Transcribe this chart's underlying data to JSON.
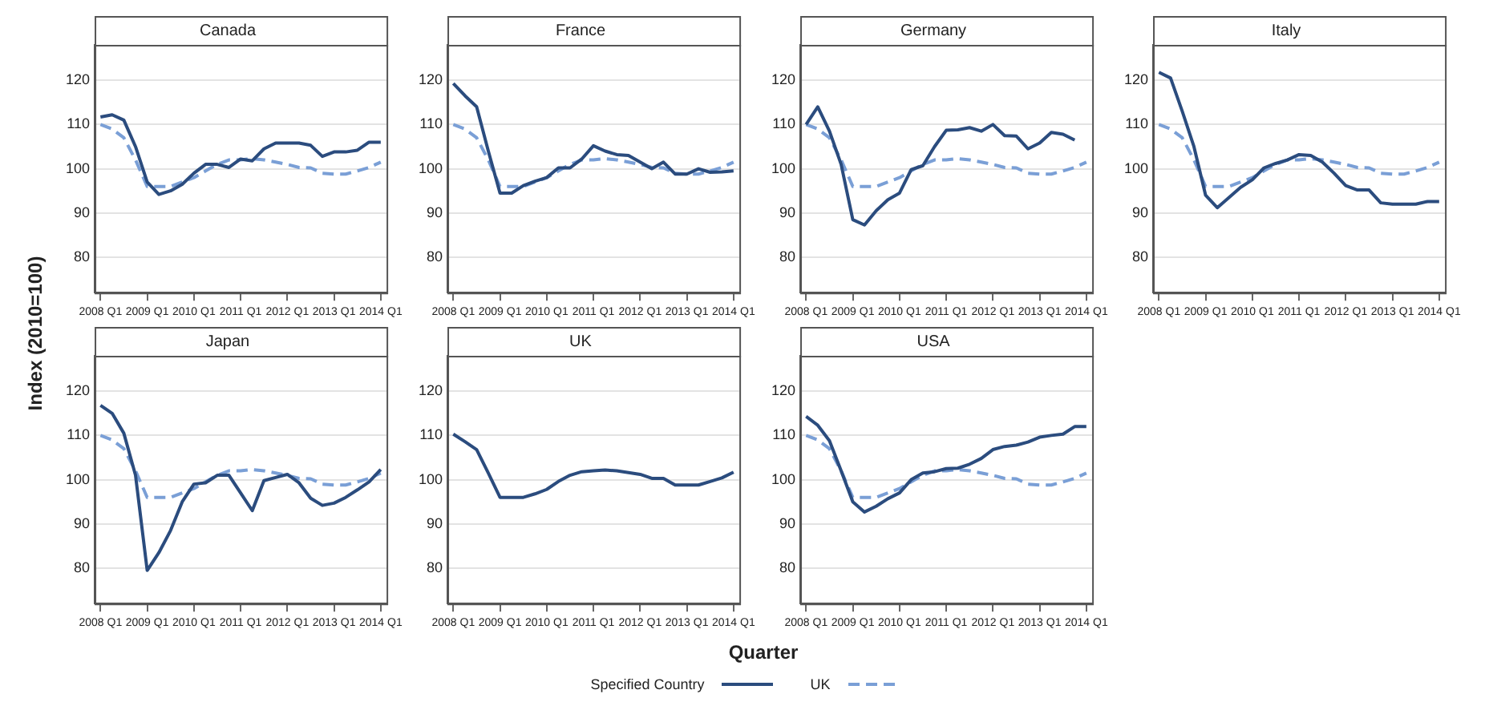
{
  "chart_data": [
    {
      "type": "line",
      "title": "Canada",
      "ylabel": "Index (2010=100)",
      "categories": [
        "2008 Q1",
        null,
        null,
        null,
        "2009 Q1",
        null,
        null,
        null,
        "2010 Q1",
        null,
        null,
        null,
        "2011 Q1",
        null,
        null,
        null,
        "2012 Q1",
        null,
        null,
        null,
        "2013 Q1",
        null,
        null,
        null,
        "2014 Q1"
      ],
      "ylim": [
        72,
        128
      ],
      "yticks": [
        80,
        90,
        100,
        110,
        120
      ],
      "grid": "y",
      "series": [
        {
          "color": "#2b4c7e",
          "line_style": "solid",
          "values": [
            111.7,
            112.2,
            111,
            105,
            97,
            94.2,
            95,
            96.5,
            99,
            101,
            101,
            100.3,
            102.2,
            101.8,
            104.5,
            105.8,
            105.8,
            105.8,
            105.3,
            102.8,
            103.8,
            103.8,
            104.2,
            106,
            106
          ]
        },
        {
          "color": "#7a9fd6",
          "line_style": "dashed",
          "values": [
            110,
            109,
            107,
            102,
            96,
            96,
            96,
            97,
            98,
            99.5,
            101,
            102,
            102,
            102.3,
            102,
            101.5,
            101,
            100.3,
            100.2,
            99,
            98.8,
            98.8,
            99.5,
            100.3,
            101.5
          ]
        }
      ]
    },
    {
      "type": "line",
      "title": "France",
      "categories": [
        "2008 Q1",
        null,
        null,
        null,
        "2009 Q1",
        null,
        null,
        null,
        "2010 Q1",
        null,
        null,
        null,
        "2011 Q1",
        null,
        null,
        null,
        "2012 Q1",
        null,
        null,
        null,
        "2013 Q1",
        null,
        null,
        null,
        "2014 Q1"
      ],
      "ylim": [
        72,
        128
      ],
      "yticks": [
        80,
        90,
        100,
        110,
        120
      ],
      "grid": "y",
      "series": [
        {
          "color": "#2b4c7e",
          "line_style": "solid",
          "values": [
            119.3,
            116.5,
            114,
            104,
            94.5,
            94.5,
            96.2,
            97.2,
            98,
            100.2,
            100.2,
            102.2,
            105.2,
            104,
            103.2,
            103,
            101.5,
            100,
            101.5,
            98.8,
            98.8,
            100,
            99.2,
            99.3,
            99.5
          ]
        },
        {
          "color": "#7a9fd6",
          "line_style": "dashed",
          "values": [
            110,
            109,
            107,
            102,
            96,
            96,
            96,
            97,
            98,
            99.5,
            101,
            102,
            102,
            102.3,
            102,
            101.5,
            101,
            100.3,
            100.2,
            99,
            98.8,
            98.8,
            99.5,
            100.3,
            101.5
          ]
        }
      ]
    },
    {
      "type": "line",
      "title": "Germany",
      "categories": [
        "2008 Q1",
        null,
        null,
        null,
        "2009 Q1",
        null,
        null,
        null,
        "2010 Q1",
        null,
        null,
        null,
        "2011 Q1",
        null,
        null,
        null,
        "2012 Q1",
        null,
        null,
        null,
        "2013 Q1",
        null,
        null,
        null,
        "2014 Q1"
      ],
      "ylim": [
        72,
        128
      ],
      "yticks": [
        80,
        90,
        100,
        110,
        120
      ],
      "grid": "y",
      "series": [
        {
          "color": "#2b4c7e",
          "line_style": "solid",
          "values": [
            110,
            114,
            108.5,
            101,
            88.5,
            87.3,
            90.5,
            93,
            94.5,
            99.8,
            100.7,
            105,
            108.7,
            108.8,
            109.3,
            108.5,
            110,
            107.5,
            107.4,
            104.5,
            105.8,
            108.2,
            107.8,
            106.5,
            null
          ]
        },
        {
          "color": "#7a9fd6",
          "line_style": "dashed",
          "values": [
            110,
            109,
            107,
            102,
            96,
            96,
            96,
            97,
            98,
            99.5,
            101,
            102,
            102,
            102.3,
            102,
            101.5,
            101,
            100.3,
            100.2,
            99,
            98.8,
            98.8,
            99.5,
            100.3,
            101.5
          ]
        }
      ]
    },
    {
      "type": "line",
      "title": "Italy",
      "categories": [
        "2008 Q1",
        null,
        null,
        null,
        "2009 Q1",
        null,
        null,
        null,
        "2010 Q1",
        null,
        null,
        null,
        "2011 Q1",
        null,
        null,
        null,
        "2012 Q1",
        null,
        null,
        null,
        "2013 Q1",
        null,
        null,
        null,
        "2014 Q1"
      ],
      "ylim": [
        72,
        128
      ],
      "yticks": [
        80,
        90,
        100,
        110,
        120
      ],
      "grid": "y",
      "series": [
        {
          "color": "#2b4c7e",
          "line_style": "solid",
          "values": [
            121.8,
            120.5,
            113,
            105,
            94,
            91.2,
            93.5,
            95.8,
            97.5,
            100.2,
            101.2,
            102,
            103.2,
            103,
            101.5,
            99,
            96.2,
            95.2,
            95.2,
            92.3,
            92,
            92,
            92,
            92.6,
            92.6
          ]
        },
        {
          "color": "#7a9fd6",
          "line_style": "dashed",
          "values": [
            110,
            109,
            107,
            102,
            96,
            96,
            96,
            97,
            98,
            99.5,
            101,
            102,
            102,
            102.3,
            102,
            101.5,
            101,
            100.3,
            100.2,
            99,
            98.8,
            98.8,
            99.5,
            100.3,
            101.5
          ]
        }
      ]
    },
    {
      "type": "line",
      "title": "Japan",
      "categories": [
        "2008 Q1",
        null,
        null,
        null,
        "2009 Q1",
        null,
        null,
        null,
        "2010 Q1",
        null,
        null,
        null,
        "2011 Q1",
        null,
        null,
        null,
        "2012 Q1",
        null,
        null,
        null,
        "2013 Q1",
        null,
        null,
        null,
        "2014 Q1"
      ],
      "ylim": [
        72,
        128
      ],
      "yticks": [
        80,
        90,
        100,
        110,
        120
      ],
      "grid": "y",
      "series": [
        {
          "color": "#2b4c7e",
          "line_style": "solid",
          "values": [
            116.8,
            115,
            110.5,
            101,
            79.5,
            83.5,
            88.5,
            95,
            99,
            99.3,
            101,
            101,
            97,
            93,
            99.8,
            100.5,
            101.2,
            99.3,
            95.8,
            94.2,
            94.7,
            96,
            97.7,
            99.5,
            102.3
          ]
        },
        {
          "color": "#7a9fd6",
          "line_style": "dashed",
          "values": [
            110,
            109,
            107,
            102,
            96,
            96,
            96,
            97,
            98,
            99.5,
            101,
            102,
            102,
            102.3,
            102,
            101.5,
            101,
            100.3,
            100.2,
            99,
            98.8,
            98.8,
            99.5,
            100.3,
            101.5
          ]
        }
      ]
    },
    {
      "type": "line",
      "title": "UK",
      "xlabel": "Quarter",
      "legend": "bottom",
      "categories": [
        "2008 Q1",
        null,
        null,
        null,
        "2009 Q1",
        null,
        null,
        null,
        "2010 Q1",
        null,
        null,
        null,
        "2011 Q1",
        null,
        null,
        null,
        "2012 Q1",
        null,
        null,
        null,
        "2013 Q1",
        null,
        null,
        null,
        "2014 Q1"
      ],
      "ylim": [
        72,
        128
      ],
      "yticks": [
        80,
        90,
        100,
        110,
        120
      ],
      "grid": "y",
      "series": [
        {
          "name": "Specified Country",
          "color": "#2b4c7e",
          "line_style": "solid",
          "values": [
            110.3,
            108.6,
            106.8,
            101.5,
            96,
            96,
            96,
            96.8,
            97.8,
            99.6,
            101,
            101.8,
            102,
            102.2,
            102,
            101.6,
            101.2,
            100.3,
            100.3,
            98.8,
            98.8,
            98.8,
            99.6,
            100.4,
            101.7
          ]
        },
        {
          "name": "UK",
          "color": "#7a9fd6",
          "line_style": "dashed",
          "values": [
            null,
            null,
            null,
            null,
            null,
            null,
            null,
            null,
            null,
            null,
            null,
            null,
            null,
            null,
            null,
            null,
            null,
            null,
            null,
            null,
            null,
            null,
            null,
            null,
            null
          ]
        }
      ]
    },
    {
      "type": "line",
      "title": "USA",
      "categories": [
        "2008 Q1",
        null,
        null,
        null,
        "2009 Q1",
        null,
        null,
        null,
        "2010 Q1",
        null,
        null,
        null,
        "2011 Q1",
        null,
        null,
        null,
        "2012 Q1",
        null,
        null,
        null,
        "2013 Q1",
        null,
        null,
        null,
        "2014 Q1"
      ],
      "ylim": [
        72,
        128
      ],
      "yticks": [
        80,
        90,
        100,
        110,
        120
      ],
      "grid": "y",
      "series": [
        {
          "color": "#2b4c7e",
          "line_style": "solid",
          "values": [
            114.3,
            112.3,
            108.8,
            102,
            95,
            92.7,
            94,
            95.7,
            97,
            100,
            101.5,
            101.8,
            102.5,
            102.6,
            103.5,
            104.8,
            106.8,
            107.5,
            107.8,
            108.5,
            109.6,
            110,
            110.3,
            112,
            112
          ]
        },
        {
          "color": "#7a9fd6",
          "line_style": "dashed",
          "values": [
            110,
            109,
            107,
            102,
            96,
            96,
            96,
            97,
            98,
            99.5,
            101,
            102,
            102,
            102.3,
            102,
            101.5,
            101,
            100.3,
            100.2,
            99,
            98.8,
            98.8,
            99.5,
            100.3,
            101.5
          ]
        }
      ]
    }
  ]
}
